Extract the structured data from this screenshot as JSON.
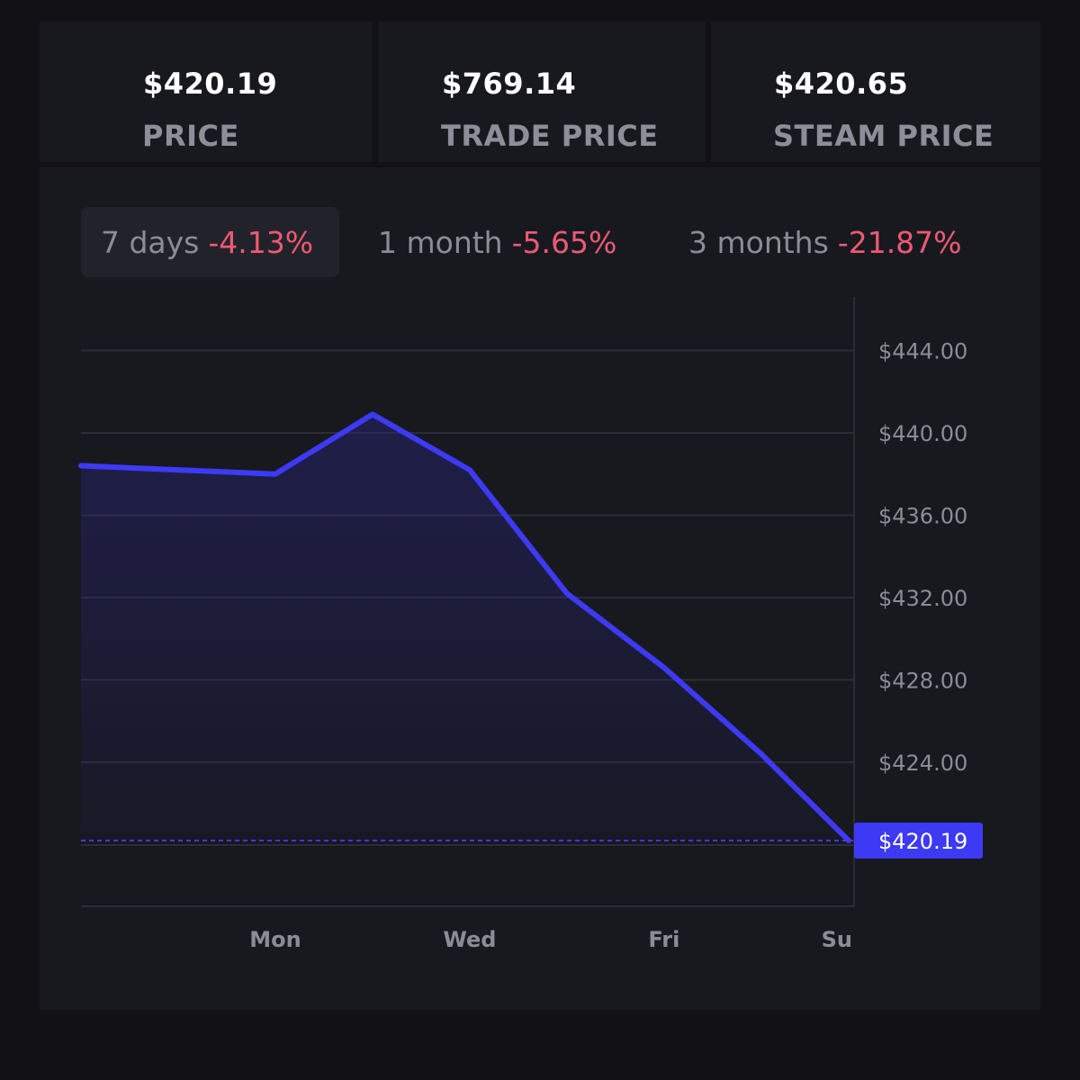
{
  "stats": [
    {
      "value": "$420.19",
      "label": "PRICE"
    },
    {
      "value": "$769.14",
      "label": "TRADE PRICE"
    },
    {
      "value": "$420.65",
      "label": "STEAM PRICE"
    }
  ],
  "tabs": [
    {
      "label": "7 days",
      "change": "-4.13%",
      "active": true
    },
    {
      "label": "1 month",
      "change": "-5.65%",
      "active": false
    },
    {
      "label": "3 months",
      "change": "-21.87%",
      "active": false
    }
  ],
  "colors": {
    "line": "#3d3af5",
    "negative": "#ec5a72",
    "grid": "#2c2c38",
    "badge": "#3d3af5"
  },
  "chart_data": {
    "type": "line",
    "title": "",
    "xlabel": "",
    "ylabel": "",
    "x": [
      0,
      1,
      1.5,
      2,
      2.5,
      3,
      3.5,
      3.95
    ],
    "series": [
      {
        "name": "price",
        "values": [
          438.4,
          438.0,
          440.9,
          438.2,
          432.2,
          428.6,
          424.4,
          420.19
        ]
      }
    ],
    "ylim": [
      417,
      446.6
    ],
    "xlim": [
      0,
      3.95
    ],
    "y_ticks": [
      444,
      440,
      436,
      432,
      428,
      424
    ],
    "y_tick_labels": [
      "$444.00",
      "$440.00",
      "$436.00",
      "$432.00",
      "$428.00",
      "$424.00"
    ],
    "x_ticks": [
      1,
      2,
      3,
      3.95
    ],
    "x_tick_labels": [
      "Mon",
      "Wed",
      "Fri",
      "Su"
    ],
    "current_value": 420.19,
    "current_label": "$420.19",
    "grid": true,
    "legend": "none"
  }
}
